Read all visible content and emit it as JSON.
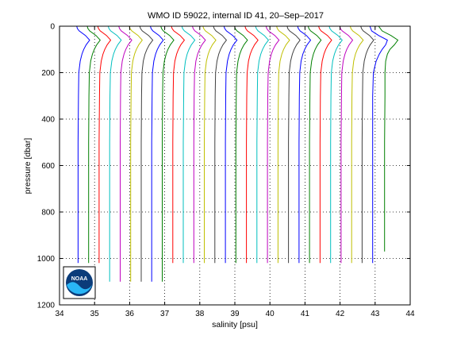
{
  "window": {
    "background": "#ffffff"
  },
  "logo": {
    "icon": "noaa-logo",
    "text": "NOAA",
    "colors": {
      "outer": "#0b3c7a",
      "wave": "#29b6f6",
      "frame": "#000000"
    }
  },
  "chart_data": {
    "type": "line",
    "title": "WMO ID 59022, internal ID 41, 20–Sep–2017",
    "xlabel": "salinity [psu]",
    "ylabel": "pressure [dbar]",
    "xlim": [
      34,
      44
    ],
    "ylim": [
      0,
      1200
    ],
    "y_reversed": true,
    "grid": "dotted",
    "legend": "none",
    "x_ticks": [
      34,
      35,
      36,
      37,
      38,
      39,
      40,
      41,
      42,
      43,
      44
    ],
    "y_ticks": [
      0,
      200,
      400,
      600,
      800,
      1000,
      1200
    ],
    "x_tick_labels": [
      "34",
      "35",
      "36",
      "37",
      "38",
      "39",
      "40",
      "41",
      "42",
      "43",
      "44"
    ],
    "y_tick_labels": [
      "0",
      "200",
      "400",
      "600",
      "800",
      "1000",
      "1200"
    ],
    "colors": [
      "#0000ff",
      "#007f00",
      "#ff0000",
      "#00bfbf",
      "#bf00bf",
      "#bfbf00",
      "#404040"
    ],
    "series": [
      {
        "pressure": [
          0,
          10,
          20,
          40,
          60,
          80,
          100,
          120,
          150,
          200,
          300,
          500,
          700,
          900,
          1020
        ],
        "salinity": [
          34.49,
          34.51,
          34.56,
          34.74,
          34.86,
          34.76,
          34.69,
          34.64,
          34.59,
          34.55,
          34.54,
          34.53,
          34.53,
          34.53,
          34.53
        ]
      },
      {
        "pressure": [
          0,
          10,
          20,
          40,
          60,
          80,
          100,
          120,
          150,
          200,
          300,
          500,
          700,
          900,
          1020
        ],
        "salinity": [
          34.79,
          34.81,
          34.86,
          35.04,
          35.16,
          35.06,
          34.99,
          34.94,
          34.89,
          34.85,
          34.84,
          34.83,
          34.83,
          34.83,
          34.83
        ]
      },
      {
        "pressure": [
          0,
          10,
          20,
          40,
          60,
          80,
          100,
          120,
          150,
          200,
          300,
          500,
          700,
          900,
          1020
        ],
        "salinity": [
          35.09,
          35.11,
          35.16,
          35.34,
          35.46,
          35.36,
          35.29,
          35.24,
          35.19,
          35.15,
          35.14,
          35.13,
          35.13,
          35.13,
          35.13
        ]
      },
      {
        "pressure": [
          0,
          10,
          20,
          40,
          60,
          80,
          100,
          120,
          150,
          200,
          300,
          500,
          700,
          900,
          1100
        ],
        "salinity": [
          35.39,
          35.41,
          35.46,
          35.64,
          35.76,
          35.66,
          35.59,
          35.54,
          35.49,
          35.45,
          35.44,
          35.43,
          35.43,
          35.43,
          35.43
        ]
      },
      {
        "pressure": [
          0,
          10,
          20,
          40,
          60,
          80,
          100,
          120,
          150,
          200,
          300,
          500,
          700,
          900,
          1100
        ],
        "salinity": [
          35.69,
          35.71,
          35.76,
          35.94,
          36.06,
          35.96,
          35.89,
          35.84,
          35.79,
          35.75,
          35.74,
          35.73,
          35.73,
          35.73,
          35.73
        ]
      },
      {
        "pressure": [
          0,
          10,
          20,
          40,
          60,
          80,
          100,
          120,
          150,
          200,
          300,
          500,
          700,
          900,
          1100
        ],
        "salinity": [
          35.99,
          36.01,
          36.06,
          36.24,
          36.36,
          36.26,
          36.19,
          36.14,
          36.09,
          36.05,
          36.04,
          36.03,
          36.03,
          36.03,
          36.03
        ]
      },
      {
        "pressure": [
          0,
          10,
          20,
          40,
          60,
          80,
          100,
          120,
          150,
          200,
          300,
          500,
          700,
          900,
          1100
        ],
        "salinity": [
          36.29,
          36.31,
          36.36,
          36.54,
          36.66,
          36.56,
          36.49,
          36.44,
          36.39,
          36.35,
          36.34,
          36.33,
          36.33,
          36.33,
          36.33
        ]
      },
      {
        "pressure": [
          0,
          10,
          20,
          40,
          60,
          80,
          100,
          120,
          150,
          200,
          300,
          500,
          700,
          900,
          1100
        ],
        "salinity": [
          36.59,
          36.61,
          36.66,
          36.84,
          36.96,
          36.86,
          36.79,
          36.74,
          36.69,
          36.65,
          36.64,
          36.63,
          36.63,
          36.63,
          36.63
        ]
      },
      {
        "pressure": [
          0,
          10,
          20,
          40,
          60,
          80,
          100,
          120,
          150,
          200,
          300,
          500,
          700,
          900,
          1100
        ],
        "salinity": [
          36.89,
          36.91,
          36.96,
          37.14,
          37.26,
          37.16,
          37.09,
          37.04,
          36.99,
          36.95,
          36.94,
          36.93,
          36.93,
          36.93,
          36.93
        ]
      },
      {
        "pressure": [
          0,
          10,
          20,
          40,
          60,
          80,
          100,
          120,
          150,
          200,
          300,
          500,
          700,
          900,
          1020
        ],
        "salinity": [
          37.19,
          37.21,
          37.26,
          37.44,
          37.56,
          37.46,
          37.39,
          37.34,
          37.29,
          37.25,
          37.24,
          37.23,
          37.23,
          37.23,
          37.23
        ]
      },
      {
        "pressure": [
          0,
          10,
          20,
          40,
          60,
          80,
          100,
          120,
          150,
          200,
          300,
          500,
          700,
          900,
          1020
        ],
        "salinity": [
          37.49,
          37.51,
          37.56,
          37.74,
          37.86,
          37.76,
          37.69,
          37.64,
          37.59,
          37.55,
          37.54,
          37.53,
          37.53,
          37.53,
          37.53
        ]
      },
      {
        "pressure": [
          0,
          10,
          20,
          40,
          60,
          80,
          100,
          120,
          150,
          200,
          300,
          500,
          700,
          900,
          1020
        ],
        "salinity": [
          37.79,
          37.81,
          37.86,
          38.04,
          38.16,
          38.06,
          37.99,
          37.94,
          37.89,
          37.85,
          37.84,
          37.83,
          37.83,
          37.83,
          37.83
        ]
      },
      {
        "pressure": [
          0,
          10,
          20,
          40,
          60,
          80,
          100,
          120,
          150,
          200,
          300,
          500,
          700,
          900,
          1020
        ],
        "salinity": [
          38.09,
          38.11,
          38.16,
          38.34,
          38.46,
          38.36,
          38.29,
          38.24,
          38.19,
          38.15,
          38.14,
          38.13,
          38.13,
          38.13,
          38.13
        ]
      },
      {
        "pressure": [
          0,
          10,
          20,
          40,
          60,
          80,
          100,
          120,
          150,
          200,
          300,
          500,
          700,
          900,
          1020
        ],
        "salinity": [
          38.39,
          38.41,
          38.46,
          38.64,
          38.76,
          38.66,
          38.59,
          38.54,
          38.49,
          38.45,
          38.44,
          38.43,
          38.43,
          38.43,
          38.43
        ]
      },
      {
        "pressure": [
          0,
          10,
          20,
          40,
          60,
          80,
          100,
          120,
          150,
          200,
          300,
          500,
          700,
          900,
          1020
        ],
        "salinity": [
          38.69,
          38.71,
          38.76,
          38.94,
          39.06,
          38.96,
          38.89,
          38.84,
          38.79,
          38.75,
          38.74,
          38.73,
          38.73,
          38.73,
          38.73
        ]
      },
      {
        "pressure": [
          0,
          10,
          20,
          40,
          60,
          80,
          100,
          120,
          150,
          200,
          300,
          500,
          700,
          900,
          1020
        ],
        "salinity": [
          38.99,
          39.01,
          39.06,
          39.24,
          39.36,
          39.26,
          39.19,
          39.14,
          39.09,
          39.05,
          39.04,
          39.03,
          39.03,
          39.03,
          39.03
        ]
      },
      {
        "pressure": [
          0,
          10,
          20,
          40,
          60,
          80,
          100,
          120,
          150,
          200,
          300,
          500,
          700,
          900,
          1020
        ],
        "salinity": [
          39.29,
          39.31,
          39.36,
          39.54,
          39.66,
          39.56,
          39.49,
          39.44,
          39.39,
          39.35,
          39.34,
          39.33,
          39.33,
          39.33,
          39.33
        ]
      },
      {
        "pressure": [
          0,
          10,
          20,
          40,
          60,
          80,
          100,
          120,
          150,
          200,
          300,
          500,
          700,
          900,
          1020
        ],
        "salinity": [
          39.59,
          39.61,
          39.66,
          39.84,
          39.96,
          39.86,
          39.79,
          39.74,
          39.69,
          39.65,
          39.64,
          39.63,
          39.63,
          39.63,
          39.63
        ]
      },
      {
        "pressure": [
          0,
          10,
          20,
          40,
          60,
          80,
          100,
          120,
          150,
          200,
          300,
          500,
          700,
          900,
          1020
        ],
        "salinity": [
          39.89,
          39.91,
          39.96,
          40.14,
          40.26,
          40.16,
          40.09,
          40.04,
          39.99,
          39.95,
          39.94,
          39.93,
          39.93,
          39.93,
          39.93
        ]
      },
      {
        "pressure": [
          0,
          10,
          20,
          40,
          60,
          80,
          100,
          120,
          150,
          200,
          300,
          500,
          700,
          900,
          1020
        ],
        "salinity": [
          40.19,
          40.21,
          40.26,
          40.44,
          40.56,
          40.46,
          40.39,
          40.34,
          40.29,
          40.25,
          40.24,
          40.23,
          40.23,
          40.23,
          40.23
        ]
      },
      {
        "pressure": [
          0,
          10,
          20,
          40,
          60,
          80,
          100,
          120,
          150,
          200,
          300,
          500,
          700,
          900,
          1020
        ],
        "salinity": [
          40.49,
          40.51,
          40.56,
          40.74,
          40.86,
          40.76,
          40.69,
          40.64,
          40.59,
          40.55,
          40.54,
          40.53,
          40.53,
          40.53,
          40.53
        ]
      },
      {
        "pressure": [
          0,
          10,
          20,
          40,
          60,
          80,
          100,
          120,
          150,
          200,
          300,
          500,
          700,
          900,
          1020
        ],
        "salinity": [
          40.79,
          40.81,
          40.86,
          41.04,
          41.16,
          41.06,
          40.99,
          40.94,
          40.89,
          40.85,
          40.84,
          40.83,
          40.83,
          40.83,
          40.83
        ]
      },
      {
        "pressure": [
          0,
          10,
          20,
          40,
          60,
          80,
          100,
          120,
          150,
          200,
          300,
          500,
          700,
          900,
          1020
        ],
        "salinity": [
          41.09,
          41.11,
          41.16,
          41.34,
          41.46,
          41.36,
          41.29,
          41.24,
          41.19,
          41.15,
          41.14,
          41.13,
          41.13,
          41.13,
          41.13
        ]
      },
      {
        "pressure": [
          0,
          10,
          20,
          40,
          60,
          80,
          100,
          120,
          150,
          200,
          300,
          500,
          700,
          900,
          1020
        ],
        "salinity": [
          41.39,
          41.41,
          41.46,
          41.64,
          41.76,
          41.66,
          41.59,
          41.54,
          41.49,
          41.45,
          41.44,
          41.43,
          41.43,
          41.43,
          41.43
        ]
      },
      {
        "pressure": [
          0,
          10,
          20,
          40,
          60,
          80,
          100,
          120,
          150,
          200,
          300,
          500,
          700,
          900,
          1020
        ],
        "salinity": [
          41.69,
          41.71,
          41.76,
          41.94,
          42.06,
          41.96,
          41.89,
          41.84,
          41.79,
          41.75,
          41.74,
          41.73,
          41.73,
          41.73,
          41.73
        ]
      },
      {
        "pressure": [
          0,
          10,
          20,
          40,
          60,
          80,
          100,
          120,
          150,
          200,
          300,
          500,
          700,
          900,
          1020
        ],
        "salinity": [
          41.99,
          42.01,
          42.06,
          42.24,
          42.36,
          42.26,
          42.19,
          42.14,
          42.09,
          42.05,
          42.04,
          42.03,
          42.03,
          42.03,
          42.03
        ]
      },
      {
        "pressure": [
          0,
          10,
          20,
          40,
          60,
          80,
          100,
          120,
          150,
          200,
          300,
          500,
          700,
          900,
          1020
        ],
        "salinity": [
          42.29,
          42.31,
          42.36,
          42.54,
          42.66,
          42.56,
          42.49,
          42.44,
          42.39,
          42.35,
          42.34,
          42.33,
          42.33,
          42.33,
          42.33
        ]
      },
      {
        "pressure": [
          0,
          10,
          20,
          40,
          60,
          80,
          100,
          120,
          150,
          200,
          300,
          500,
          700,
          900,
          1020
        ],
        "salinity": [
          42.59,
          42.61,
          42.66,
          42.84,
          42.96,
          42.86,
          42.79,
          42.74,
          42.69,
          42.65,
          42.64,
          42.63,
          42.63,
          42.63,
          42.63
        ]
      },
      {
        "pressure": [
          0,
          20,
          40,
          60,
          80,
          100,
          120,
          150,
          200,
          300,
          500,
          700,
          900,
          1020
        ],
        "salinity": [
          42.85,
          42.9,
          43.1,
          43.35,
          43.3,
          43.2,
          43.12,
          43.03,
          42.95,
          42.93,
          42.93,
          42.93,
          42.93,
          42.93
        ]
      },
      {
        "pressure": [
          0,
          20,
          40,
          60,
          80,
          100,
          120,
          150,
          200,
          300,
          500,
          700,
          900,
          970
        ],
        "salinity": [
          43.1,
          43.2,
          43.45,
          43.65,
          43.55,
          43.42,
          43.35,
          43.3,
          43.28,
          43.28,
          43.27,
          43.27,
          43.27,
          43.27
        ]
      }
    ]
  }
}
